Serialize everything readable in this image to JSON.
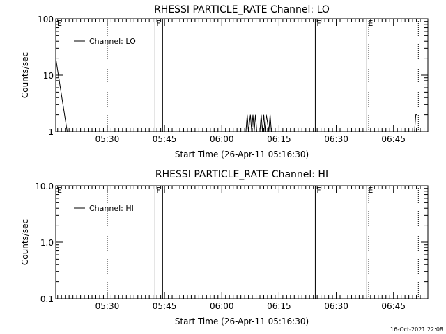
{
  "footer": {
    "timestamp": "16-Oct-2021 22:08"
  },
  "chart_data": [
    {
      "type": "line",
      "title": "RHESSI PARTICLE_RATE Channel: LO",
      "xlabel": "Start Time (26-Apr-11 05:16:30)",
      "ylabel": "Counts/sec",
      "y_scale": "log",
      "ylim": [
        1,
        100
      ],
      "xlim": [
        "05:16:30",
        "06:54:00"
      ],
      "x_ticks": [
        "05:30",
        "05:45",
        "06:00",
        "06:15",
        "06:30",
        "06:45"
      ],
      "y_ticks": [
        "1",
        "10",
        "100"
      ],
      "legend": {
        "label": "Channel: LO",
        "position": "top-left"
      },
      "grid": false,
      "markers": [
        {
          "label": "E",
          "time": "05:16:30",
          "style": "solid"
        },
        {
          "label": "",
          "time": "05:30:00",
          "style": "dotted"
        },
        {
          "label": "F",
          "time": "05:42:30",
          "style": "solid"
        },
        {
          "label": "",
          "time": "05:44:30",
          "style": "solid"
        },
        {
          "label": "F",
          "time": "06:24:30",
          "style": "solid"
        },
        {
          "label": "E",
          "time": "06:38:00",
          "style": "solid"
        },
        {
          "label": "",
          "time": "06:38:30",
          "style": "dotted"
        },
        {
          "label": "",
          "time": "06:51:30",
          "style": "dotted"
        }
      ],
      "series": [
        {
          "x": [
            "05:16:30",
            "05:19:30",
            "06:06:20",
            "06:06:40",
            "06:07:00",
            "06:07:30",
            "06:07:50",
            "06:08:10",
            "06:08:30",
            "06:08:50",
            "06:09:10",
            "06:10:00",
            "06:10:20",
            "06:10:40",
            "06:11:00",
            "06:11:20",
            "06:11:40",
            "06:12:20",
            "06:12:40",
            "06:13:00",
            "06:50:30",
            "06:50:50",
            "06:51:10"
          ],
          "values": [
            20,
            1,
            1,
            2,
            1,
            2,
            1,
            2,
            1,
            2,
            1,
            1,
            2,
            1,
            2,
            1,
            2,
            1,
            2,
            1,
            1,
            2,
            2
          ]
        }
      ]
    },
    {
      "type": "line",
      "title": "RHESSI PARTICLE_RATE Channel: HI",
      "xlabel": "Start Time (26-Apr-11 05:16:30)",
      "ylabel": "Counts/sec",
      "y_scale": "log",
      "ylim": [
        0.1,
        10.0
      ],
      "xlim": [
        "05:16:30",
        "06:54:00"
      ],
      "x_ticks": [
        "05:30",
        "05:45",
        "06:00",
        "06:15",
        "06:30",
        "06:45"
      ],
      "y_ticks": [
        "0.1",
        "1.0",
        "10.0"
      ],
      "legend": {
        "label": "Channel: HI",
        "position": "top-left"
      },
      "grid": false,
      "markers": [
        {
          "label": "E",
          "time": "05:16:30",
          "style": "solid"
        },
        {
          "label": "",
          "time": "05:30:00",
          "style": "dotted"
        },
        {
          "label": "F",
          "time": "05:42:30",
          "style": "solid"
        },
        {
          "label": "",
          "time": "05:44:30",
          "style": "solid"
        },
        {
          "label": "F",
          "time": "06:24:30",
          "style": "solid"
        },
        {
          "label": "E",
          "time": "06:38:00",
          "style": "solid"
        },
        {
          "label": "",
          "time": "06:38:30",
          "style": "dotted"
        },
        {
          "label": "",
          "time": "06:51:30",
          "style": "dotted"
        }
      ],
      "series": [
        {
          "x": [],
          "values": []
        }
      ]
    }
  ]
}
